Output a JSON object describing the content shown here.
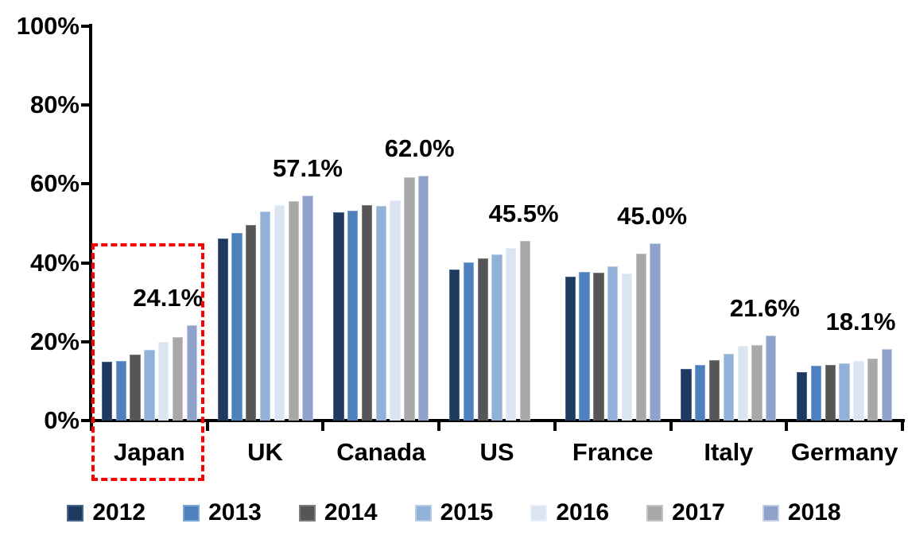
{
  "chart_data": {
    "type": "bar",
    "title": "",
    "xlabel": "",
    "ylabel": "",
    "ylim": [
      0,
      100
    ],
    "y_tick_labels": [
      "0%",
      "20%",
      "40%",
      "60%",
      "80%",
      "100%"
    ],
    "y_tick_values": [
      0,
      20,
      40,
      60,
      80,
      100
    ],
    "grid": false,
    "legend_position": "bottom",
    "categories": [
      "Japan",
      "UK",
      "Canada",
      "US",
      "France",
      "Italy",
      "Germany"
    ],
    "series": [
      {
        "name": "2012",
        "color": "#1F3A5E",
        "border": "#46688E",
        "values": [
          14.9,
          46.2,
          52.9,
          38.4,
          36.4,
          13.1,
          12.3
        ]
      },
      {
        "name": "2013",
        "color": "#4E80BD",
        "border": "#7EA6D2",
        "values": [
          15.1,
          47.6,
          53.3,
          40.2,
          37.7,
          14.1,
          13.9
        ]
      },
      {
        "name": "2014",
        "color": "#565656",
        "border": "#7E7E7E",
        "values": [
          16.7,
          49.7,
          54.7,
          41.1,
          37.6,
          15.3,
          14.1
        ]
      },
      {
        "name": "2015",
        "color": "#92B1D8",
        "border": "#B8CCE4",
        "values": [
          18.0,
          53.1,
          54.5,
          42.2,
          39.2,
          16.9,
          14.5
        ]
      },
      {
        "name": "2016",
        "color": "#DBE5F1",
        "border": "#E9EFF7",
        "values": [
          19.9,
          54.7,
          55.9,
          43.7,
          37.3,
          18.9,
          15.1
        ]
      },
      {
        "name": "2017",
        "color": "#A8A8A8",
        "border": "#C4C4C4",
        "values": [
          21.2,
          55.7,
          61.6,
          45.5,
          42.4,
          19.1,
          15.7
        ]
      },
      {
        "name": "2018",
        "color": "#8FA2CB",
        "border": "#C3CEE4",
        "values": [
          24.1,
          57.1,
          62.0,
          null,
          45.0,
          21.6,
          18.1
        ]
      }
    ],
    "annotations": [
      {
        "category": "Japan",
        "text": "24.1%",
        "dx": -30
      },
      {
        "category": "UK",
        "text": "57.1%",
        "dx": 0
      },
      {
        "category": "Canada",
        "text": "62.0%",
        "dx": -5
      },
      {
        "category": "US",
        "text": "45.5%",
        "dx": -2
      },
      {
        "category": "France",
        "text": "45.0%",
        "dx": -4
      },
      {
        "category": "Italy",
        "text": "21.6%",
        "dx": -8
      },
      {
        "category": "Germany",
        "text": "18.1%",
        "dx": -33
      }
    ],
    "highlight": {
      "category": "Japan",
      "style": "red-dashed-box",
      "color": "#FB0000"
    }
  }
}
